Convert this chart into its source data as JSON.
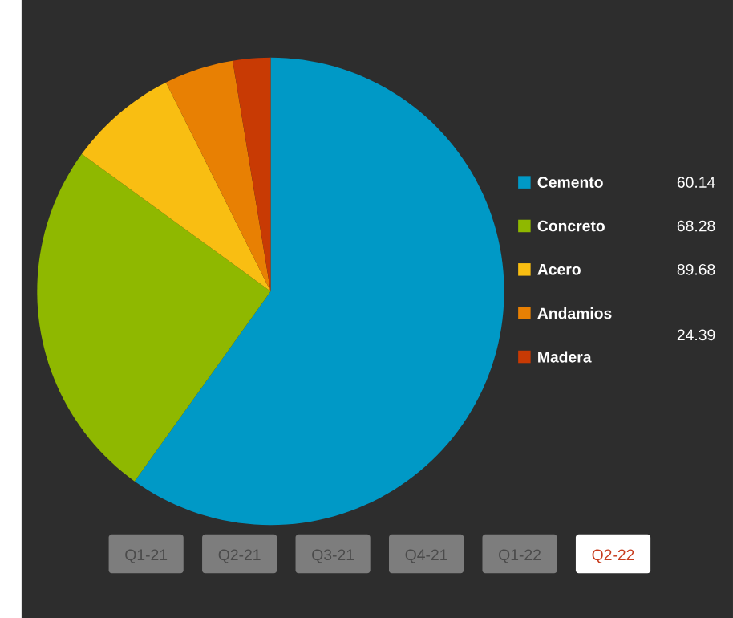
{
  "chart_data": {
    "type": "pie",
    "categories": [
      "Cemento",
      "Concreto",
      "Acero",
      "Andamios",
      "Madera"
    ],
    "values": [
      59.9,
      25.1,
      7.6,
      4.8,
      2.6
    ],
    "colors": [
      "#0099c6",
      "#8fb800",
      "#f9be12",
      "#e88003",
      "#c83a04"
    ],
    "legend": "right",
    "annotations": [
      "60.14",
      "68.28",
      "89.68",
      "24.39",
      "Q1-21",
      "Q2-21",
      "Q3-21",
      "Q4-21",
      "Q1-22",
      "Q2-22"
    ]
  }
}
